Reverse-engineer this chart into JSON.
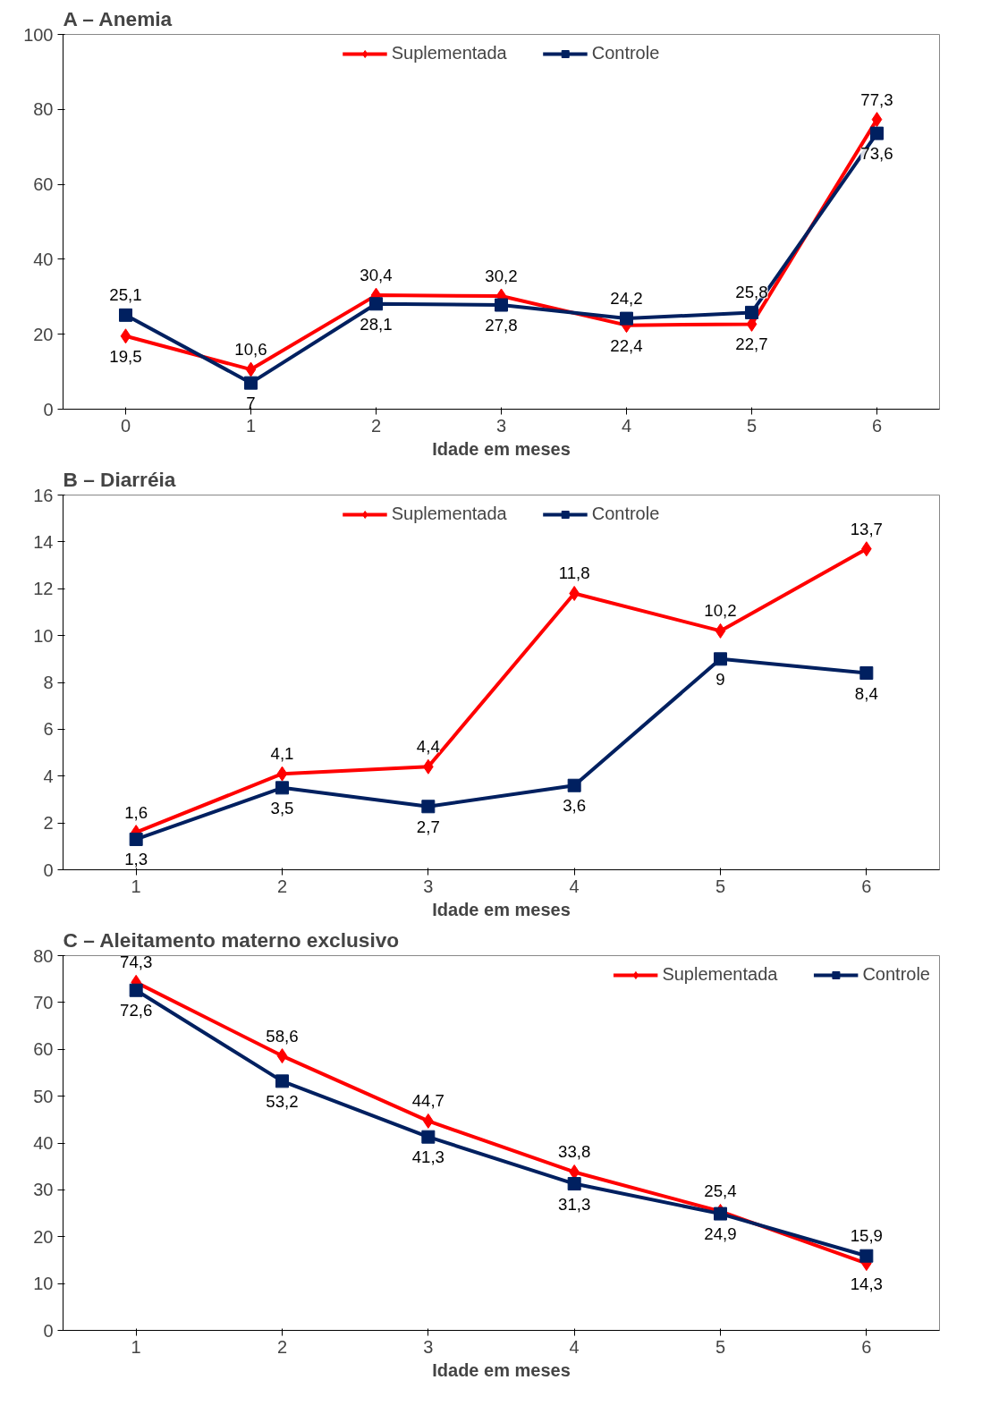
{
  "chart_data": [
    {
      "type": "line",
      "title": "A – Anemia",
      "xlabel": "Idade em meses",
      "categories": [
        "0",
        "1",
        "2",
        "3",
        "4",
        "5",
        "6"
      ],
      "ylim": [
        0,
        100
      ],
      "yticks": [
        0,
        20,
        40,
        60,
        80,
        100
      ],
      "legend": "top",
      "grid": false,
      "series": [
        {
          "name": "Suplementada",
          "color": "#ff0000",
          "marker": "diamond",
          "values": [
            19.5,
            10.6,
            30.4,
            30.2,
            22.4,
            22.7,
            77.3
          ],
          "value_labels": [
            "19,5",
            "10,6",
            "30,4",
            "30,2",
            "22,4",
            "22,7",
            "77,3"
          ]
        },
        {
          "name": "Controle",
          "color": "#002060",
          "marker": "square",
          "values": [
            25.1,
            7,
            28.1,
            27.8,
            24.2,
            25.8,
            73.6
          ],
          "value_labels": [
            "25,1",
            "7",
            "28,1",
            "27,8",
            "24,2",
            "25,8",
            "73,6"
          ]
        }
      ]
    },
    {
      "type": "line",
      "title": "B – Diarréia",
      "xlabel": "Idade em meses",
      "categories": [
        "1",
        "2",
        "3",
        "4",
        "5",
        "6"
      ],
      "ylim": [
        0,
        16
      ],
      "yticks": [
        0,
        2,
        4,
        6,
        8,
        10,
        12,
        14,
        16
      ],
      "legend": "top",
      "grid": false,
      "series": [
        {
          "name": "Suplementada",
          "color": "#ff0000",
          "marker": "diamond",
          "values": [
            1.6,
            4.1,
            4.4,
            11.8,
            10.2,
            13.7
          ],
          "value_labels": [
            "1,6",
            "4,1",
            "4,4",
            "11,8",
            "10,2",
            "13,7"
          ]
        },
        {
          "name": "Controle",
          "color": "#002060",
          "marker": "square",
          "values": [
            1.3,
            3.5,
            2.7,
            3.6,
            9,
            8.4
          ],
          "value_labels": [
            "1,3",
            "3,5",
            "2,7",
            "3,6",
            "9",
            "8,4"
          ]
        }
      ]
    },
    {
      "type": "line",
      "title": "C – Aleitamento materno exclusivo",
      "xlabel": "Idade em meses",
      "categories": [
        "1",
        "2",
        "3",
        "4",
        "5",
        "6"
      ],
      "ylim": [
        0,
        80
      ],
      "yticks": [
        0,
        10,
        20,
        30,
        40,
        50,
        60,
        70,
        80
      ],
      "legend": "top right",
      "grid": false,
      "series": [
        {
          "name": "Suplementada",
          "color": "#ff0000",
          "marker": "diamond",
          "values": [
            74.3,
            58.6,
            44.7,
            33.8,
            25.4,
            14.3
          ],
          "value_labels": [
            "74,3",
            "58,6",
            "44,7",
            "33,8",
            "25,4",
            "14,3"
          ]
        },
        {
          "name": "Controle",
          "color": "#002060",
          "marker": "square",
          "values": [
            72.6,
            53.2,
            41.3,
            31.3,
            24.9,
            15.9
          ],
          "value_labels": [
            "72,6",
            "53,2",
            "41,3",
            "31,3",
            "24,9",
            "15,9"
          ]
        }
      ]
    }
  ]
}
